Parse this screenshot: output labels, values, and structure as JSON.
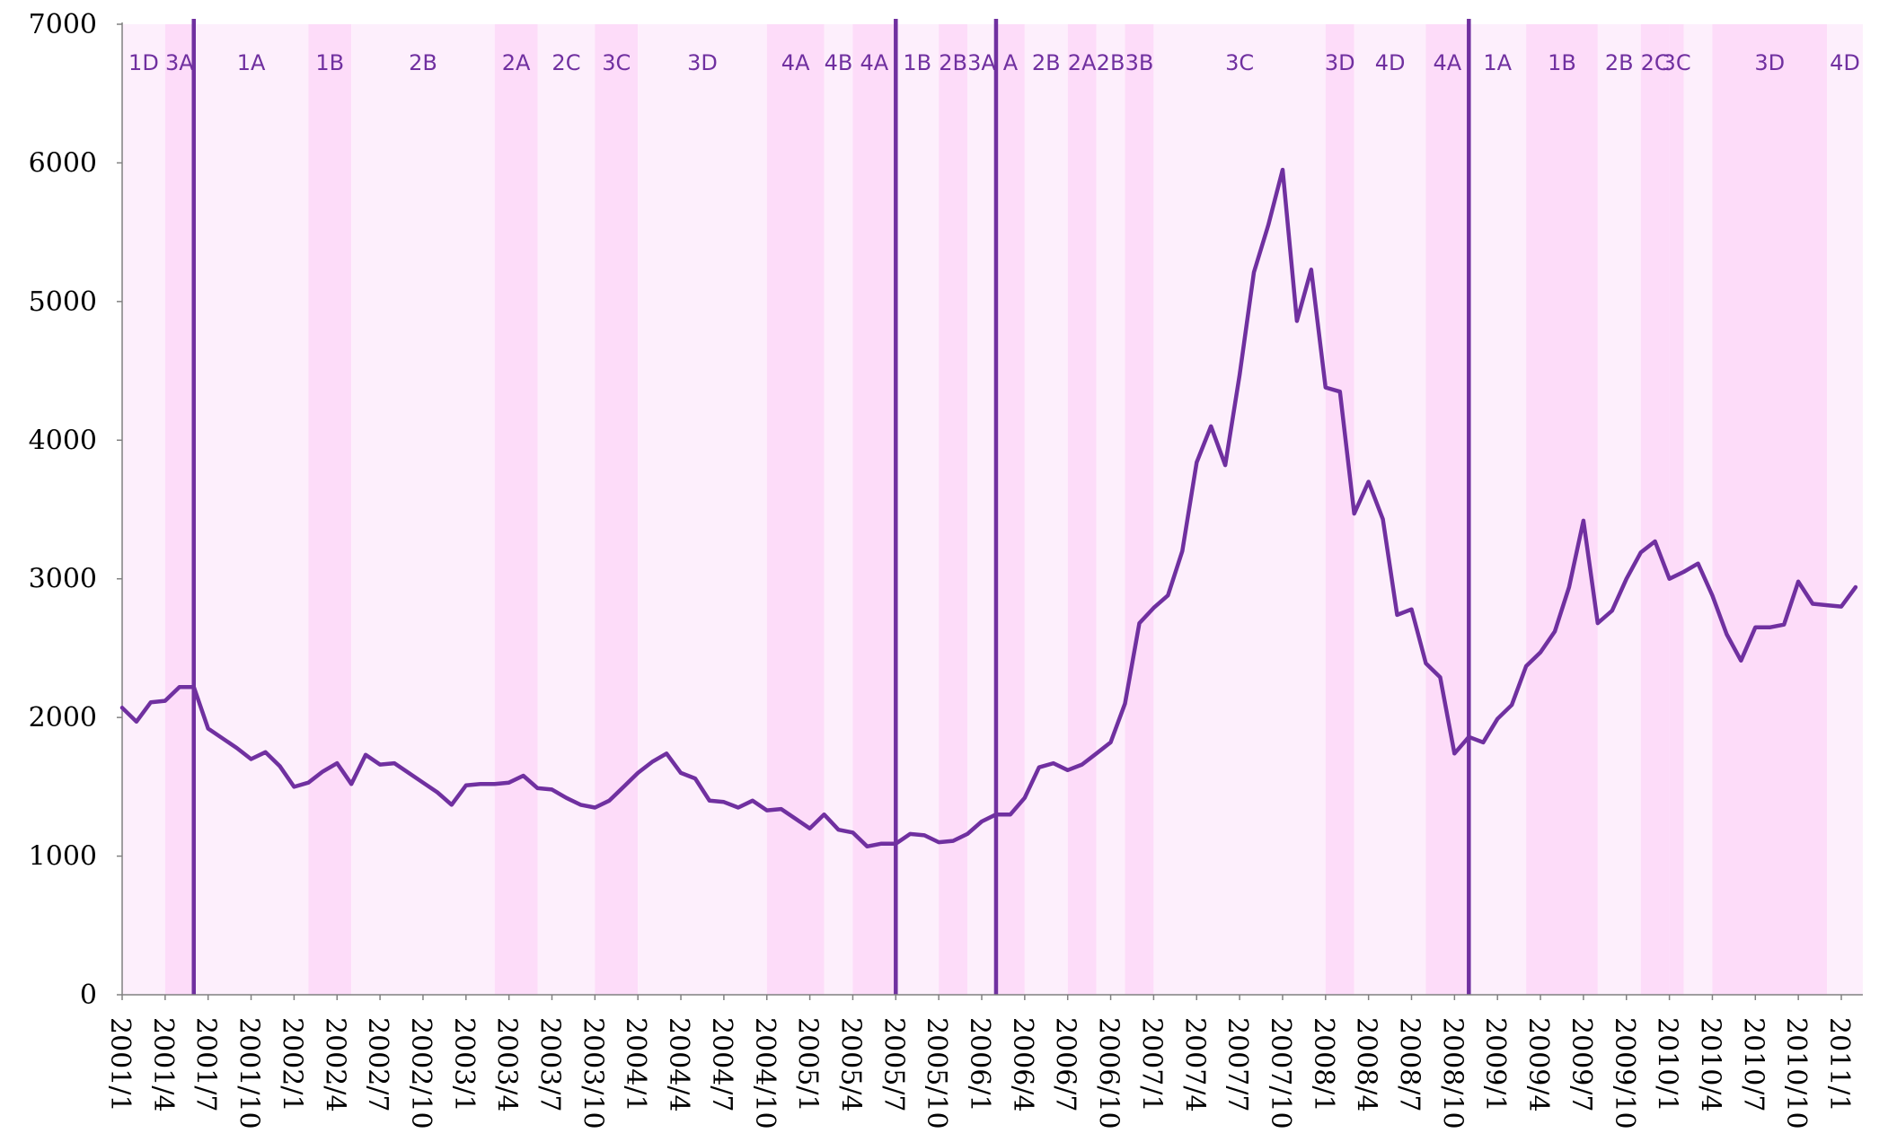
{
  "colors": {
    "line": "#7030A0",
    "band_light": "#FDEFFC",
    "band_dark": "#FDDCF9",
    "axis": "#808080",
    "tick_text": "#000000",
    "phase_text": "#7030A0"
  },
  "chart_data": {
    "type": "line",
    "title": "",
    "xlabel": "",
    "ylabel": "",
    "ylim": [
      0,
      7000
    ],
    "yticks": [
      0,
      1000,
      2000,
      3000,
      4000,
      5000,
      6000,
      7000
    ],
    "grid": false,
    "legend": "none",
    "x_start": "2001/1",
    "x_tick_labels": [
      "2001/1",
      "2001/4",
      "2001/7",
      "2001/10",
      "2002/1",
      "2002/4",
      "2002/7",
      "2002/10",
      "2003/1",
      "2003/4",
      "2003/7",
      "2003/10",
      "2004/1",
      "2004/4",
      "2004/7",
      "2004/10",
      "2005/1",
      "2005/4",
      "2005/7",
      "2005/10",
      "2006/1",
      "2006/4",
      "2006/7",
      "2006/10",
      "2007/1",
      "2007/4",
      "2007/7",
      "2007/10",
      "2008/1",
      "2008/4",
      "2008/7",
      "2008/10",
      "2009/1",
      "2009/4",
      "2009/7",
      "2009/10",
      "2010/1",
      "2010/4",
      "2010/7",
      "2010/10",
      "2011/1"
    ],
    "values": [
      2070,
      1970,
      2110,
      2120,
      2220,
      2220,
      1920,
      1850,
      1780,
      1700,
      1750,
      1650,
      1500,
      1530,
      1610,
      1670,
      1520,
      1730,
      1660,
      1670,
      1600,
      1530,
      1460,
      1370,
      1510,
      1520,
      1520,
      1530,
      1580,
      1490,
      1480,
      1420,
      1370,
      1350,
      1400,
      1500,
      1600,
      1680,
      1740,
      1600,
      1560,
      1400,
      1390,
      1350,
      1400,
      1330,
      1340,
      1270,
      1200,
      1300,
      1190,
      1170,
      1070,
      1090,
      1090,
      1160,
      1150,
      1100,
      1110,
      1160,
      1250,
      1300,
      1300,
      1420,
      1640,
      1670,
      1620,
      1660,
      1740,
      1820,
      2100,
      2680,
      2790,
      2880,
      3200,
      3840,
      4100,
      3820,
      4470,
      5210,
      5550,
      5950,
      4860,
      5230,
      4380,
      4350,
      3470,
      3700,
      3430,
      2740,
      2780,
      2390,
      2290,
      1740,
      1860,
      1820,
      1990,
      2090,
      2370,
      2470,
      2620,
      2940,
      3420,
      2680,
      2770,
      3000,
      3190,
      3270,
      3000,
      3050,
      3110,
      2880,
      2600,
      2410,
      2650,
      2650,
      2670,
      2980,
      2820,
      2810,
      2800,
      2940
    ],
    "vertical_lines_at_months": [
      5,
      54,
      61,
      94
    ],
    "phases": [
      {
        "label": "1D",
        "start": 0,
        "end": 3,
        "shade": "light"
      },
      {
        "label": "3A",
        "start": 3,
        "end": 5,
        "shade": "dark"
      },
      {
        "label": "1A",
        "start": 5,
        "end": 13,
        "shade": "light"
      },
      {
        "label": "1B",
        "start": 13,
        "end": 16,
        "shade": "dark"
      },
      {
        "label": "2B",
        "start": 16,
        "end": 26,
        "shade": "light"
      },
      {
        "label": "2A",
        "start": 26,
        "end": 29,
        "shade": "dark"
      },
      {
        "label": "2C",
        "start": 29,
        "end": 33,
        "shade": "light"
      },
      {
        "label": "3C",
        "start": 33,
        "end": 36,
        "shade": "dark"
      },
      {
        "label": "3D",
        "start": 36,
        "end": 45,
        "shade": "light"
      },
      {
        "label": "4A",
        "start": 45,
        "end": 49,
        "shade": "dark"
      },
      {
        "label": "4B",
        "start": 49,
        "end": 51,
        "shade": "light"
      },
      {
        "label": "4A",
        "start": 51,
        "end": 54,
        "shade": "dark"
      },
      {
        "label": "1B",
        "start": 54,
        "end": 57,
        "shade": "light"
      },
      {
        "label": "2B",
        "start": 57,
        "end": 59,
        "shade": "dark"
      },
      {
        "label": "3A",
        "start": 59,
        "end": 61,
        "shade": "light"
      },
      {
        "label": "A",
        "start": 61,
        "end": 63,
        "shade": "dark"
      },
      {
        "label": "2B",
        "start": 63,
        "end": 66,
        "shade": "light"
      },
      {
        "label": "2A",
        "start": 66,
        "end": 68,
        "shade": "dark"
      },
      {
        "label": "2B",
        "start": 68,
        "end": 70,
        "shade": "light"
      },
      {
        "label": "3B",
        "start": 70,
        "end": 72,
        "shade": "dark"
      },
      {
        "label": "3C",
        "start": 72,
        "end": 84,
        "shade": "light"
      },
      {
        "label": "3D",
        "start": 84,
        "end": 86,
        "shade": "dark"
      },
      {
        "label": "4D",
        "start": 86,
        "end": 91,
        "shade": "light"
      },
      {
        "label": "4A",
        "start": 91,
        "end": 94,
        "shade": "dark"
      },
      {
        "label": "1A",
        "start": 94,
        "end": 98,
        "shade": "light"
      },
      {
        "label": "1B",
        "start": 98,
        "end": 103,
        "shade": "dark"
      },
      {
        "label": "2B",
        "start": 103,
        "end": 106,
        "shade": "light"
      },
      {
        "label": "2C",
        "start": 106,
        "end": 108,
        "shade": "dark"
      },
      {
        "label": "3C",
        "start": 108,
        "end": 109,
        "shade": "dark"
      },
      {
        "label": "",
        "start": 109,
        "end": 111,
        "shade": "light"
      },
      {
        "label": "3D",
        "start": 111,
        "end": 119,
        "shade": "dark"
      },
      {
        "label": "4D",
        "start": 119,
        "end": 122,
        "shade": "light"
      }
    ]
  }
}
